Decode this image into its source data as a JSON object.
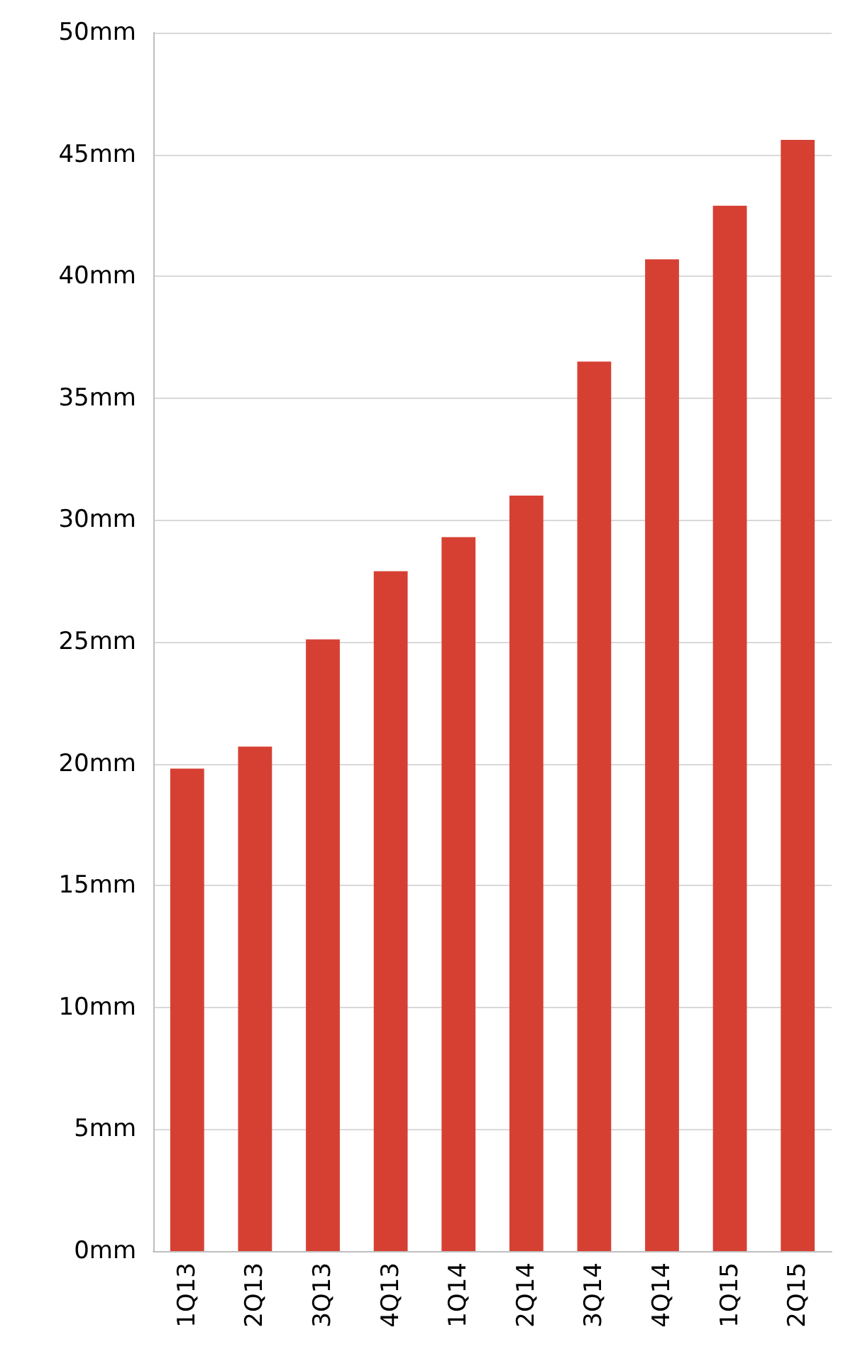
{
  "chart_data": {
    "type": "bar",
    "categories": [
      "1Q13",
      "2Q13",
      "3Q13",
      "4Q13",
      "1Q14",
      "2Q14",
      "3Q14",
      "4Q14",
      "1Q15",
      "2Q15"
    ],
    "values": [
      19.8,
      20.7,
      25.1,
      27.9,
      29.3,
      31.0,
      36.5,
      40.7,
      42.9,
      45.6
    ],
    "color": "#d64033",
    "ylim": [
      0,
      50
    ],
    "yticks": [
      {
        "value": 0,
        "label": "0mm"
      },
      {
        "value": 5,
        "label": "5mm"
      },
      {
        "value": 10,
        "label": "10mm"
      },
      {
        "value": 15,
        "label": "15mm"
      },
      {
        "value": 20,
        "label": "20mm"
      },
      {
        "value": 25,
        "label": "25mm"
      },
      {
        "value": 30,
        "label": "30mm"
      },
      {
        "value": 35,
        "label": "35mm"
      },
      {
        "value": 40,
        "label": "40mm"
      },
      {
        "value": 45,
        "label": "45mm"
      },
      {
        "value": 50,
        "label": "50mm"
      }
    ],
    "grid": "y"
  }
}
